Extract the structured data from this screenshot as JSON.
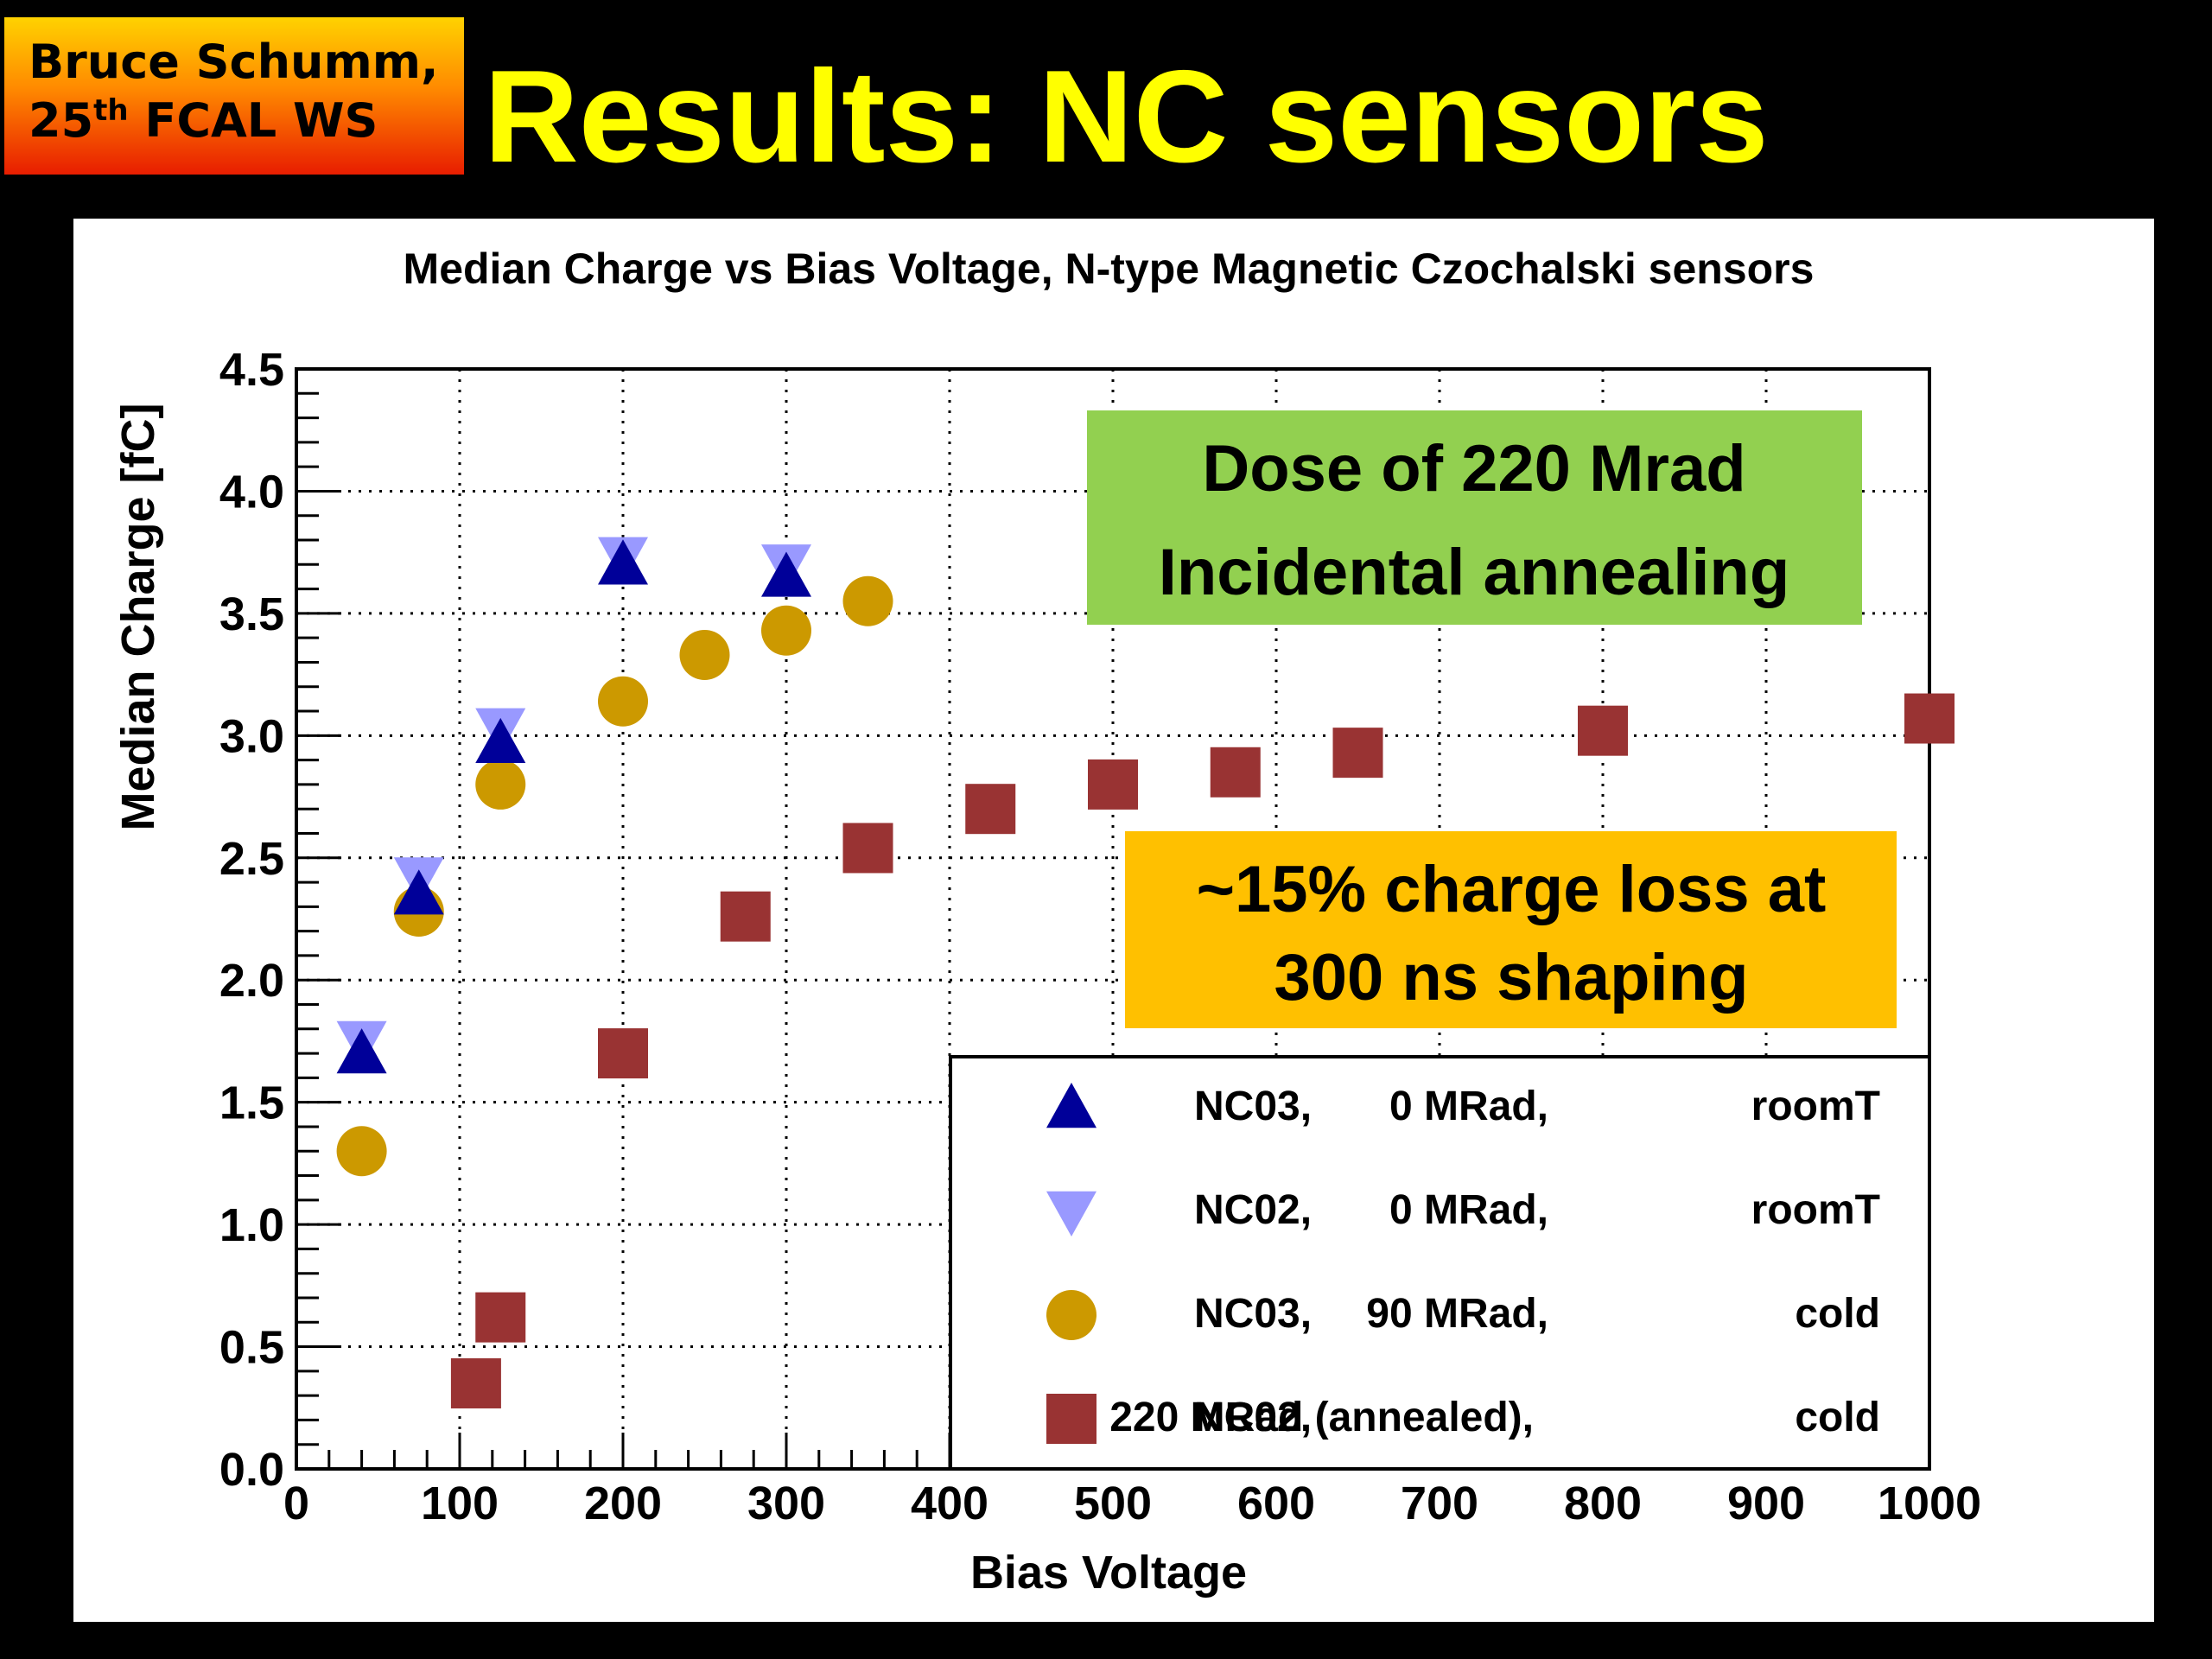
{
  "slide": {
    "author_line1": "Bruce Schumm,",
    "author_line2_pre": "25",
    "author_line2_sup": "th",
    "author_line2_post": " FCAL WS",
    "title": "Results: NC sensors"
  },
  "annotations": {
    "dose_line1": "Dose of 220 Mrad",
    "dose_line2": "Incidental annealing",
    "loss_line1": "~15% charge loss at",
    "loss_line2": "300 ns shaping",
    "dose_color": "#92d050",
    "loss_color": "#ffc000"
  },
  "legend": [
    {
      "sample": "NC03,",
      "dose": "0 MRad,",
      "cond": "roomT"
    },
    {
      "sample": "NC02,",
      "dose": "0 MRad,",
      "cond": "roomT"
    },
    {
      "sample": "NC03,",
      "dose": "90 MRad,",
      "cond": "cold"
    },
    {
      "sample": "NC02,",
      "dose": "220 MRad (annealed),",
      "cond": "cold"
    }
  ],
  "chart_data": {
    "type": "scatter",
    "title": "Median Charge vs Bias Voltage, N-type Magnetic Czochalski sensors",
    "xlabel": "Bias Voltage",
    "ylabel": "Median Charge [fC]",
    "xlim": [
      0,
      1000
    ],
    "ylim": [
      0,
      4.5
    ],
    "xticks": [
      "0",
      "100",
      "200",
      "300",
      "400",
      "500",
      "600",
      "700",
      "800",
      "900",
      "1000"
    ],
    "yticks": [
      "0.0",
      "0.5",
      "1.0",
      "1.5",
      "2.0",
      "2.5",
      "3.0",
      "3.5",
      "4.0",
      "4.5"
    ],
    "grid": true,
    "legend_position": "bottom-right",
    "series": [
      {
        "name": "NC03, 0 MRad, roomT",
        "marker": "triangle-up",
        "color": "#000099",
        "points": [
          [
            40,
            1.7
          ],
          [
            75,
            2.35
          ],
          [
            125,
            2.97
          ],
          [
            200,
            3.7
          ],
          [
            300,
            3.65
          ]
        ]
      },
      {
        "name": "NC02, 0 MRad, roomT",
        "marker": "triangle-down",
        "color": "#9999ff",
        "points": [
          [
            40,
            1.75
          ],
          [
            75,
            2.42
          ],
          [
            125,
            3.03
          ],
          [
            200,
            3.73
          ],
          [
            300,
            3.7
          ]
        ]
      },
      {
        "name": "NC03, 90 MRad, cold",
        "marker": "circle",
        "color": "#cc9900",
        "points": [
          [
            40,
            1.3
          ],
          [
            75,
            2.28
          ],
          [
            125,
            2.8
          ],
          [
            200,
            3.14
          ],
          [
            250,
            3.33
          ],
          [
            300,
            3.43
          ],
          [
            350,
            3.55
          ]
        ]
      },
      {
        "name": "NC02, 220 MRad (annealed), cold",
        "marker": "square",
        "color": "#993333",
        "points": [
          [
            110,
            0.35
          ],
          [
            125,
            0.62
          ],
          [
            200,
            1.7
          ],
          [
            275,
            2.26
          ],
          [
            350,
            2.54
          ],
          [
            425,
            2.7
          ],
          [
            500,
            2.8
          ],
          [
            575,
            2.85
          ],
          [
            650,
            2.93
          ],
          [
            800,
            3.02
          ],
          [
            1000,
            3.07
          ]
        ]
      }
    ]
  }
}
